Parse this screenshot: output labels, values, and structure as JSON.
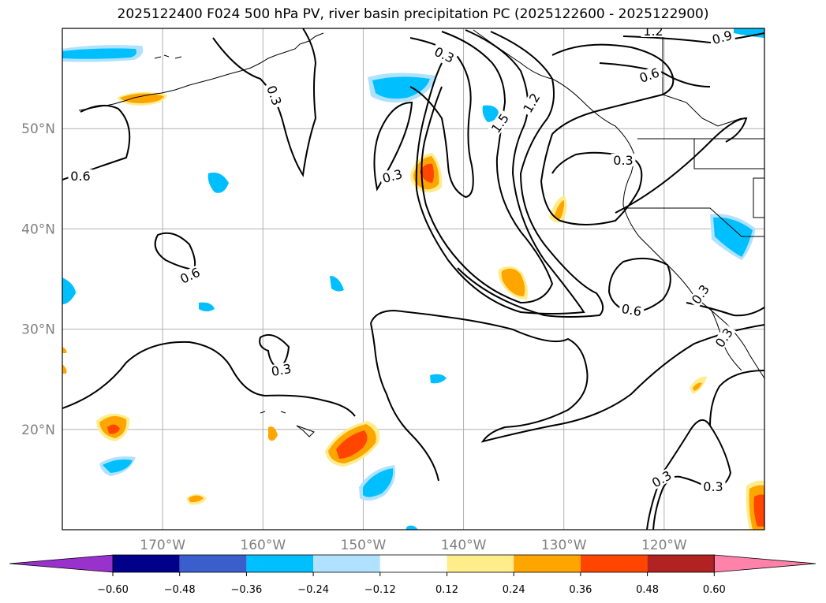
{
  "title": "2025122400 F024 500 hPa PV, river basin precipitation PC (2025122600 - 2025122900)",
  "map": {
    "lon_range": [
      -180,
      -110
    ],
    "lat_range": [
      10,
      60
    ],
    "lat_labels": [
      "20°N",
      "30°N",
      "40°N",
      "50°N"
    ],
    "lon_labels": [
      "170°W",
      "160°W",
      "150°W",
      "140°W",
      "130°W",
      "120°W"
    ],
    "grid_lats": [
      20,
      30,
      40,
      50
    ],
    "grid_lons": [
      -170,
      -160,
      -150,
      -140,
      -130,
      -120
    ]
  },
  "contour_labels": [
    "0.3",
    "0.3",
    "0.3",
    "0.3",
    "0.3",
    "0.3",
    "0.3",
    "0.6",
    "0.6",
    "0.6",
    "0.6",
    "0.9",
    "1.2",
    "1.2",
    "1.5",
    "0.3",
    "0.3"
  ],
  "colorbar": {
    "ticks": [
      "−0.60",
      "−0.48",
      "−0.36",
      "−0.24",
      "−0.12",
      "0.12",
      "0.24",
      "0.36",
      "0.48",
      "0.60"
    ],
    "colors": [
      "#9932cc",
      "#00008b",
      "#3a5fcd",
      "#00bfff",
      "#b0e2ff",
      "#ffffff",
      "#ffec8b",
      "#ffa500",
      "#ff4500",
      "#b22222",
      "#ff82ab",
      "#ff82ab"
    ]
  }
}
